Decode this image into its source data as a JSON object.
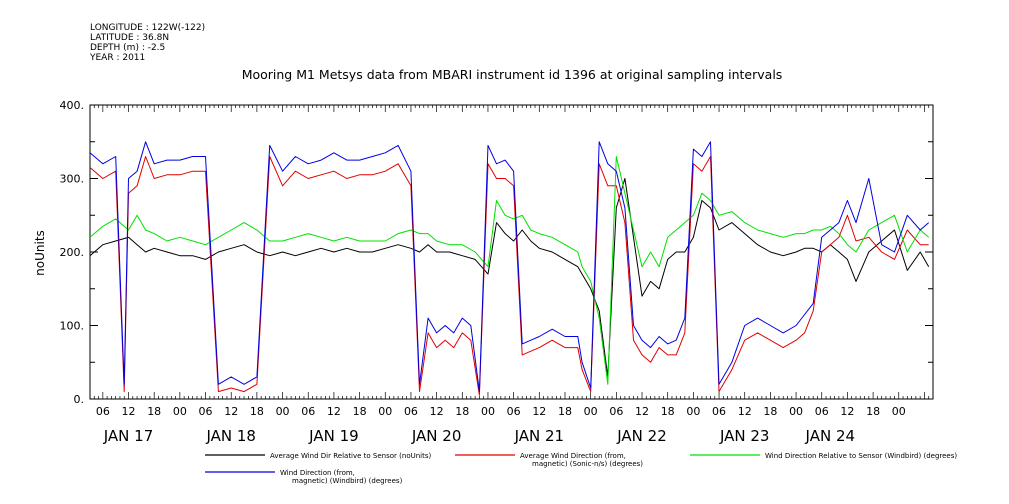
{
  "header": {
    "longitude": "LONGITUDE : 122W(-122)",
    "latitude": "LATITUDE : 36.8N",
    "depth": "DEPTH (m) : -2.5",
    "year": "YEAR : 2011"
  },
  "chart_data": {
    "type": "line",
    "title": "Mooring M1 Metsys data from MBARI instrument id 1396 at original sampling intervals",
    "ylabel": "noUnits",
    "xlabel": "",
    "ylim": [
      0,
      400
    ],
    "yticks": [
      "0.",
      "100.",
      "200.",
      "300.",
      "400."
    ],
    "xlim": [
      3,
      200
    ],
    "hour_ticks": [
      "06",
      "12",
      "18",
      "00",
      "06",
      "12",
      "18",
      "00",
      "06",
      "12",
      "18",
      "00",
      "06",
      "12",
      "18",
      "00",
      "06",
      "12",
      "18",
      "00",
      "06",
      "12",
      "18",
      "00",
      "06",
      "12",
      "18",
      "00",
      "06",
      "12",
      "18",
      "00"
    ],
    "day_labels": [
      {
        "hour": 12,
        "label": "JAN 17"
      },
      {
        "hour": 36,
        "label": "JAN 18"
      },
      {
        "hour": 60,
        "label": "JAN 19"
      },
      {
        "hour": 84,
        "label": "JAN 20"
      },
      {
        "hour": 108,
        "label": "JAN 21"
      },
      {
        "hour": 132,
        "label": "JAN 22"
      },
      {
        "hour": 156,
        "label": "JAN 23"
      },
      {
        "hour": 176,
        "label": "JAN 24"
      }
    ],
    "grid": false,
    "legend_position": "bottom",
    "series": [
      {
        "name": "Average Wind Dir Relative to Sensor (noUnits)",
        "color": "#000000",
        "x": [
          3,
          6,
          9,
          12,
          14,
          16,
          18,
          21,
          24,
          27,
          30,
          33,
          36,
          39,
          42,
          45,
          48,
          51,
          54,
          57,
          60,
          63,
          66,
          69,
          72,
          75,
          78,
          80,
          82,
          84,
          87,
          90,
          93,
          96,
          98,
          100,
          102,
          104,
          106,
          108,
          111,
          114,
          117,
          118,
          120,
          122,
          124,
          126,
          128,
          130,
          132,
          134,
          136,
          138,
          140,
          142,
          144,
          146,
          148,
          150,
          153,
          156,
          159,
          162,
          165,
          168,
          170,
          172,
          174,
          176,
          178,
          180,
          182,
          185,
          188,
          191,
          194,
          197,
          199
        ],
        "y": [
          195,
          210,
          215,
          220,
          210,
          200,
          205,
          200,
          195,
          195,
          190,
          200,
          205,
          210,
          200,
          195,
          200,
          195,
          200,
          205,
          200,
          205,
          200,
          200,
          205,
          210,
          205,
          200,
          210,
          200,
          200,
          195,
          190,
          170,
          240,
          225,
          215,
          230,
          215,
          205,
          200,
          190,
          180,
          170,
          150,
          120,
          30,
          260,
          300,
          220,
          140,
          160,
          150,
          190,
          200,
          200,
          220,
          270,
          260,
          230,
          240,
          225,
          210,
          200,
          195,
          200,
          205,
          205,
          200,
          210,
          200,
          190,
          160,
          200,
          215,
          230,
          175,
          200,
          180
        ]
      },
      {
        "name": "Average Wind Direction (from, magnetic) (Sonic-n/s) (degrees)",
        "color": "#e00000",
        "x": [
          3,
          6,
          9,
          11,
          12,
          14,
          16,
          18,
          21,
          24,
          27,
          30,
          33,
          36,
          39,
          42,
          45,
          48,
          51,
          54,
          57,
          60,
          63,
          66,
          69,
          72,
          75,
          78,
          80,
          82,
          84,
          86,
          88,
          90,
          92,
          94,
          96,
          98,
          100,
          102,
          104,
          106,
          108,
          111,
          114,
          117,
          118,
          120,
          122,
          124,
          126,
          128,
          130,
          132,
          134,
          136,
          138,
          140,
          142,
          144,
          146,
          148,
          150,
          153,
          156,
          159,
          162,
          165,
          168,
          170,
          172,
          174,
          176,
          178,
          180,
          182,
          185,
          188,
          191,
          194,
          197,
          199
        ],
        "y": [
          315,
          300,
          310,
          10,
          280,
          290,
          330,
          300,
          305,
          305,
          310,
          310,
          10,
          15,
          10,
          20,
          330,
          290,
          310,
          300,
          305,
          310,
          300,
          305,
          305,
          310,
          320,
          290,
          10,
          90,
          70,
          80,
          70,
          90,
          80,
          5,
          320,
          300,
          300,
          290,
          60,
          65,
          70,
          80,
          70,
          70,
          40,
          10,
          320,
          290,
          290,
          240,
          80,
          60,
          50,
          70,
          60,
          60,
          90,
          320,
          310,
          330,
          10,
          40,
          80,
          90,
          80,
          70,
          80,
          90,
          120,
          200,
          210,
          220,
          250,
          215,
          220,
          200,
          190,
          230,
          210,
          210
        ]
      },
      {
        "name": "Wind Direction Relative to Sensor (Windbird) (degrees)",
        "color": "#00e000",
        "x": [
          3,
          6,
          9,
          12,
          14,
          16,
          18,
          21,
          24,
          27,
          30,
          33,
          36,
          39,
          42,
          45,
          48,
          51,
          54,
          57,
          60,
          63,
          66,
          69,
          72,
          75,
          78,
          80,
          82,
          84,
          87,
          90,
          93,
          96,
          98,
          100,
          102,
          104,
          106,
          108,
          111,
          114,
          117,
          118,
          120,
          122,
          124,
          126,
          128,
          130,
          132,
          134,
          136,
          138,
          140,
          142,
          144,
          146,
          148,
          150,
          153,
          156,
          159,
          162,
          165,
          168,
          170,
          172,
          174,
          176,
          178,
          180,
          182,
          185,
          188,
          191,
          194,
          197,
          199
        ],
        "y": [
          220,
          235,
          245,
          230,
          250,
          230,
          225,
          215,
          220,
          215,
          210,
          220,
          230,
          240,
          230,
          215,
          215,
          220,
          225,
          220,
          215,
          220,
          215,
          215,
          215,
          225,
          230,
          225,
          225,
          215,
          210,
          210,
          200,
          180,
          270,
          250,
          245,
          250,
          230,
          225,
          220,
          210,
          200,
          180,
          160,
          110,
          20,
          330,
          280,
          230,
          180,
          200,
          180,
          220,
          230,
          240,
          250,
          280,
          270,
          250,
          255,
          240,
          230,
          225,
          220,
          225,
          225,
          230,
          230,
          235,
          225,
          210,
          200,
          230,
          240,
          250,
          200,
          230,
          220
        ]
      },
      {
        "name": "Wind Direction (from, magnetic) (Windbird) (degrees)",
        "color": "#0000e0",
        "x": [
          3,
          6,
          9,
          11,
          12,
          14,
          16,
          18,
          21,
          24,
          27,
          30,
          33,
          36,
          39,
          42,
          45,
          48,
          51,
          54,
          57,
          60,
          63,
          66,
          69,
          72,
          75,
          78,
          80,
          82,
          84,
          86,
          88,
          90,
          92,
          94,
          96,
          98,
          100,
          102,
          104,
          106,
          108,
          111,
          114,
          117,
          118,
          120,
          122,
          124,
          126,
          128,
          130,
          132,
          134,
          136,
          138,
          140,
          142,
          144,
          146,
          148,
          150,
          153,
          156,
          159,
          162,
          165,
          168,
          170,
          172,
          174,
          176,
          178,
          180,
          182,
          185,
          188,
          191,
          194,
          197,
          199
        ],
        "y": [
          335,
          320,
          330,
          20,
          300,
          310,
          350,
          320,
          325,
          325,
          330,
          330,
          20,
          30,
          20,
          30,
          345,
          310,
          330,
          320,
          325,
          335,
          325,
          325,
          330,
          335,
          345,
          310,
          20,
          110,
          90,
          100,
          90,
          110,
          100,
          10,
          345,
          320,
          325,
          310,
          75,
          80,
          85,
          95,
          85,
          85,
          50,
          15,
          350,
          320,
          310,
          260,
          100,
          80,
          70,
          85,
          75,
          80,
          110,
          340,
          330,
          350,
          20,
          50,
          100,
          110,
          100,
          90,
          100,
          115,
          130,
          220,
          230,
          240,
          270,
          240,
          300,
          210,
          200,
          250,
          230,
          240
        ]
      }
    ]
  }
}
